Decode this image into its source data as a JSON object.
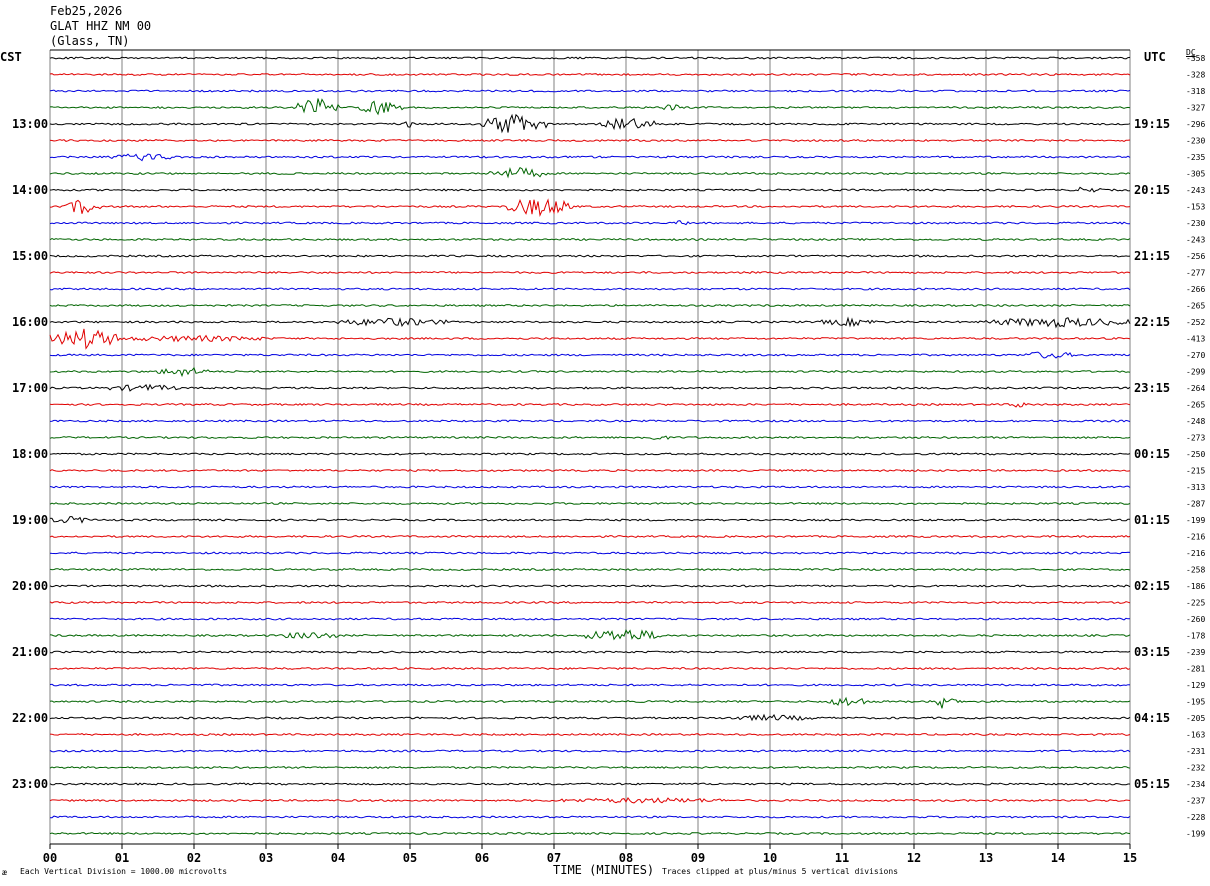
{
  "header": {
    "date": "Feb25,2026",
    "station": "GLAT HHZ NM 00",
    "location": "(Glass, TN)"
  },
  "left_axis_title": "CST",
  "right_axis_title": "UTC",
  "dc_label": "DC",
  "footer": {
    "vertical_division": "Each Vertical Division = 1000.00 microvolts",
    "x_axis_label": "TIME (MINUTES)",
    "clip_note": "Traces clipped at plus/minus 5 vertical divisions",
    "corner_mark": "æ"
  },
  "colors": {
    "black": "#000000",
    "red": "#e00000",
    "blue": "#0000e0",
    "green": "#006400",
    "grid": "#808080"
  },
  "chart_data": {
    "type": "line",
    "title": "GLAT HHZ NM 00",
    "xlabel": "TIME (MINUTES)",
    "x_range": [
      0,
      15
    ],
    "x_ticks": [
      "00",
      "01",
      "02",
      "03",
      "04",
      "05",
      "06",
      "07",
      "08",
      "09",
      "10",
      "11",
      "12",
      "13",
      "14",
      "15"
    ],
    "trace_interval_minutes": 15,
    "trace_color_cycle": [
      "black",
      "red",
      "blue",
      "green"
    ],
    "traces_count": 48,
    "left_time_labels": [
      {
        "row": 4,
        "label": "13:00"
      },
      {
        "row": 8,
        "label": "14:00"
      },
      {
        "row": 12,
        "label": "15:00"
      },
      {
        "row": 16,
        "label": "16:00"
      },
      {
        "row": 20,
        "label": "17:00"
      },
      {
        "row": 24,
        "label": "18:00"
      },
      {
        "row": 28,
        "label": "19:00"
      },
      {
        "row": 32,
        "label": "20:00"
      },
      {
        "row": 36,
        "label": "21:00"
      },
      {
        "row": 40,
        "label": "22:00"
      },
      {
        "row": 44,
        "label": "23:00"
      }
    ],
    "right_time_labels": [
      {
        "row": 4,
        "label": "19:15"
      },
      {
        "row": 8,
        "label": "20:15"
      },
      {
        "row": 12,
        "label": "21:15"
      },
      {
        "row": 16,
        "label": "22:15"
      },
      {
        "row": 20,
        "label": "23:15"
      },
      {
        "row": 24,
        "label": "00:15"
      },
      {
        "row": 28,
        "label": "01:15"
      },
      {
        "row": 32,
        "label": "02:15"
      },
      {
        "row": 36,
        "label": "03:15"
      },
      {
        "row": 40,
        "label": "04:15"
      },
      {
        "row": 44,
        "label": "05:15"
      }
    ],
    "dc_offsets": [
      "-358",
      "-328",
      "-318",
      "-327",
      "-296",
      "-230",
      "-235",
      "-305",
      "-243",
      "-153",
      "-230",
      "-243",
      "-256",
      "-277",
      "-266",
      "-265",
      "-252",
      "-413",
      "-270",
      "-299",
      "-264",
      "-265",
      "-248",
      "-273",
      "-250",
      "-215",
      "-313",
      "-287",
      "-199",
      "-216",
      "-216",
      "-258",
      "-186",
      "-225",
      "-260",
      "-178",
      "-239",
      "-281",
      "-129",
      "-195",
      "-205",
      "-163",
      "-231",
      "-232",
      "-234",
      "-237",
      "-228",
      "-199"
    ],
    "events": [
      {
        "row": 3,
        "start_min": 3.4,
        "end_min": 4.0,
        "amp": 2.2
      },
      {
        "row": 3,
        "start_min": 4.3,
        "end_min": 4.9,
        "amp": 1.8
      },
      {
        "row": 3,
        "start_min": 8.5,
        "end_min": 8.8,
        "amp": 0.8
      },
      {
        "row": 4,
        "start_min": 4.9,
        "end_min": 5.1,
        "amp": 0.6
      },
      {
        "row": 4,
        "start_min": 6.0,
        "end_min": 6.9,
        "amp": 2.6
      },
      {
        "row": 4,
        "start_min": 7.6,
        "end_min": 8.4,
        "amp": 1.6
      },
      {
        "row": 6,
        "start_min": 0.8,
        "end_min": 1.8,
        "amp": 0.7
      },
      {
        "row": 7,
        "start_min": 6.1,
        "end_min": 6.9,
        "amp": 1.3
      },
      {
        "row": 8,
        "start_min": 14.2,
        "end_min": 14.6,
        "amp": 0.7
      },
      {
        "row": 9,
        "start_min": 0.2,
        "end_min": 0.7,
        "amp": 1.8
      },
      {
        "row": 9,
        "start_min": 6.3,
        "end_min": 7.3,
        "amp": 2.2
      },
      {
        "row": 10,
        "start_min": 8.7,
        "end_min": 8.9,
        "amp": 0.6
      },
      {
        "row": 16,
        "start_min": 4.0,
        "end_min": 5.5,
        "amp": 0.9
      },
      {
        "row": 16,
        "start_min": 10.7,
        "end_min": 11.5,
        "amp": 0.8
      },
      {
        "row": 16,
        "start_min": 13.0,
        "end_min": 15.0,
        "amp": 1.1
      },
      {
        "row": 17,
        "start_min": 0.0,
        "end_min": 1.0,
        "amp": 2.4
      },
      {
        "row": 17,
        "start_min": 1.0,
        "end_min": 3.0,
        "amp": 0.6
      },
      {
        "row": 18,
        "start_min": 13.5,
        "end_min": 14.2,
        "amp": 0.8
      },
      {
        "row": 19,
        "start_min": 1.5,
        "end_min": 2.2,
        "amp": 1.0
      },
      {
        "row": 20,
        "start_min": 0.8,
        "end_min": 1.8,
        "amp": 0.7
      },
      {
        "row": 21,
        "start_min": 13.3,
        "end_min": 13.6,
        "amp": 0.6
      },
      {
        "row": 23,
        "start_min": 8.2,
        "end_min": 8.6,
        "amp": 0.5
      },
      {
        "row": 28,
        "start_min": 0.0,
        "end_min": 0.6,
        "amp": 0.7
      },
      {
        "row": 35,
        "start_min": 3.2,
        "end_min": 4.0,
        "amp": 0.8
      },
      {
        "row": 35,
        "start_min": 7.4,
        "end_min": 8.5,
        "amp": 1.6
      },
      {
        "row": 39,
        "start_min": 10.8,
        "end_min": 11.4,
        "amp": 1.1
      },
      {
        "row": 39,
        "start_min": 12.2,
        "end_min": 12.6,
        "amp": 1.8
      },
      {
        "row": 40,
        "start_min": 9.4,
        "end_min": 10.6,
        "amp": 0.6
      },
      {
        "row": 45,
        "start_min": 7.1,
        "end_min": 9.4,
        "amp": 0.5
      }
    ]
  }
}
